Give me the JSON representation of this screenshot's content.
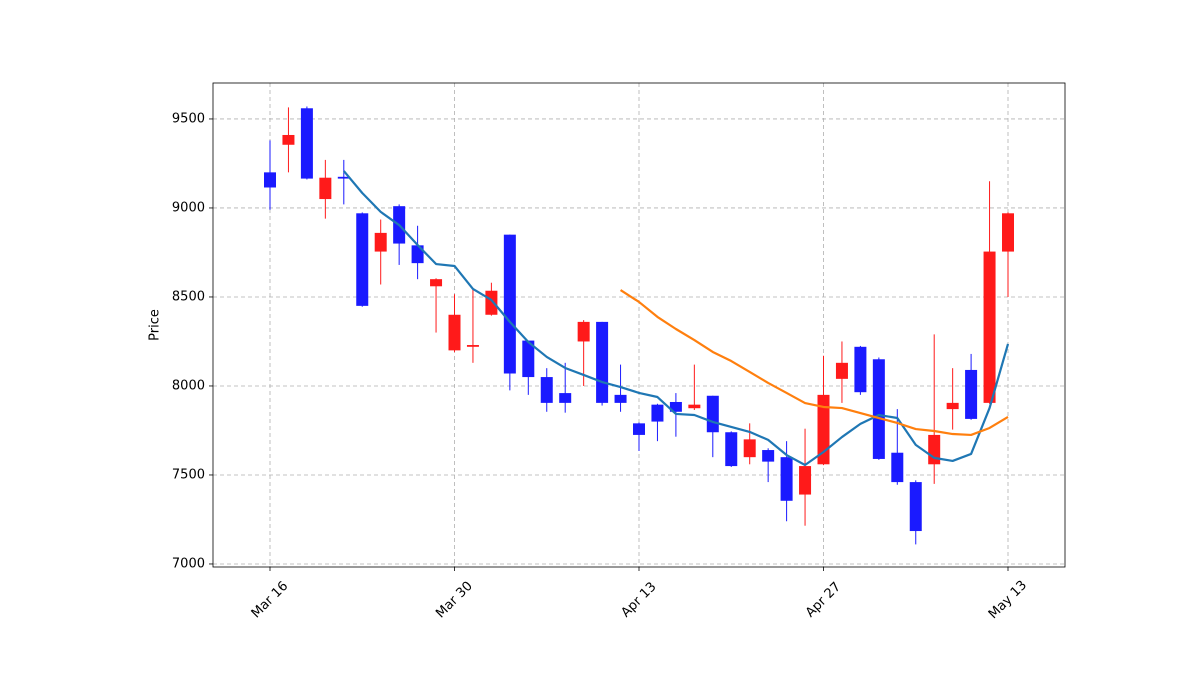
{
  "chart_data": {
    "type": "candlestick",
    "y_label": "Price",
    "categories": [
      "Mar 16",
      null,
      null,
      null,
      null,
      null,
      null,
      null,
      null,
      null,
      "Mar 30",
      null,
      null,
      null,
      null,
      null,
      null,
      null,
      null,
      null,
      "Apr 13",
      null,
      null,
      null,
      null,
      null,
      null,
      null,
      null,
      null,
      "Apr 27",
      null,
      null,
      null,
      null,
      null,
      null,
      null,
      null,
      null,
      "May 13"
    ],
    "open": [
      9200,
      9355,
      9560,
      9050,
      9175,
      8970,
      8755,
      9010,
      8790,
      8560,
      8200,
      8220,
      8400,
      8850,
      8255,
      8050,
      7960,
      8250,
      8360,
      7950,
      7790,
      7895,
      7910,
      7875,
      7945,
      7740,
      7600,
      7640,
      7600,
      7390,
      7560,
      8040,
      8220,
      8150,
      7625,
      7460,
      7560,
      7870,
      8090,
      7905,
      8755
    ],
    "high": [
      9380,
      9565,
      9570,
      9270,
      9270,
      8975,
      8935,
      9020,
      8900,
      8605,
      8515,
      8540,
      8580,
      8850,
      8255,
      8100,
      8130,
      8370,
      8360,
      8120,
      7795,
      7900,
      7960,
      8120,
      7945,
      7745,
      7790,
      7650,
      7690,
      7760,
      8170,
      8250,
      8225,
      8160,
      7870,
      7470,
      8290,
      8100,
      8180,
      9150,
      8975
    ],
    "low": [
      8990,
      9200,
      9160,
      8940,
      9020,
      8445,
      8570,
      8680,
      8600,
      8300,
      8190,
      8130,
      8395,
      7975,
      7950,
      7855,
      7850,
      8000,
      7890,
      7855,
      7635,
      7690,
      7715,
      7865,
      7600,
      7545,
      7560,
      7460,
      7240,
      7215,
      7555,
      7905,
      7950,
      7585,
      7445,
      7110,
      7450,
      7755,
      7810,
      7900,
      8500
    ],
    "close": [
      9115,
      9410,
      9165,
      9170,
      9165,
      8450,
      8860,
      8800,
      8690,
      8600,
      8400,
      8230,
      8535,
      8070,
      8050,
      7905,
      7905,
      8360,
      7905,
      7905,
      7725,
      7800,
      7855,
      7895,
      7740,
      7550,
      7700,
      7575,
      7355,
      7550,
      7950,
      8130,
      7965,
      7590,
      7460,
      7185,
      7725,
      7905,
      7815,
      8755,
      8970
    ],
    "up_color": "#ff1a1a",
    "down_color": "#1a1aff",
    "series": [
      {
        "color": "#1f77b4",
        "values": [
          null,
          null,
          null,
          null,
          9208,
          9084,
          8978,
          8904,
          8792,
          8685,
          8674,
          8545,
          8483,
          8360,
          8247,
          8163,
          8101,
          8062,
          8022,
          7994,
          7961,
          7938,
          7843,
          7837,
          7798,
          7770,
          7742,
          7697,
          7612,
          7556,
          7629,
          7713,
          7787,
          7837,
          7820,
          7669,
          7596,
          7579,
          7618,
          7876,
          8236
        ]
      },
      {
        "color": "#ff7f0e",
        "values": [
          null,
          null,
          null,
          null,
          null,
          null,
          null,
          null,
          null,
          null,
          null,
          null,
          null,
          null,
          null,
          null,
          null,
          null,
          null,
          8539,
          8472,
          8388,
          8320,
          8258,
          8191,
          8140,
          8079,
          8017,
          7961,
          7904,
          7882,
          7876,
          7848,
          7820,
          7792,
          7758,
          7747,
          7730,
          7725,
          7764,
          7826
        ]
      }
    ],
    "ylim": [
      6983,
      9702
    ],
    "yticks": [
      7000,
      7500,
      8000,
      8500,
      9000,
      9500
    ],
    "grid": true
  }
}
